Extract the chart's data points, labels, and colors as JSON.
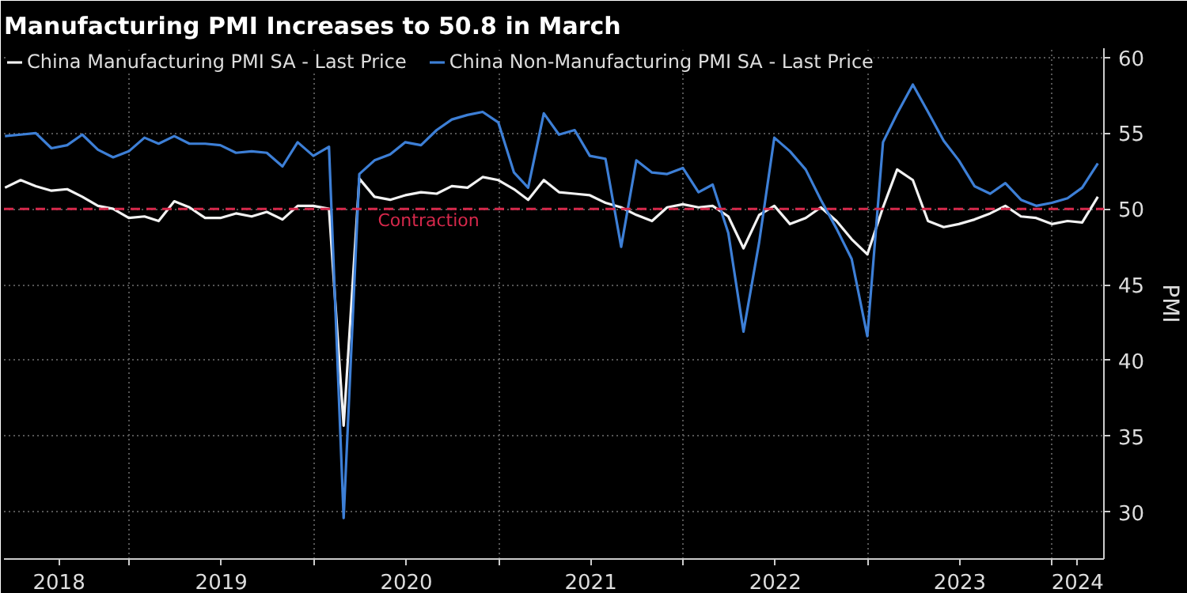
{
  "chart_data": {
    "type": "line",
    "title": "Manufacturing PMI Increases to 50.8 in March",
    "ylabel": "PMI",
    "x": [
      "2018-04-30",
      "2018-05-31",
      "2018-06-30",
      "2018-07-31",
      "2018-08-31",
      "2018-09-30",
      "2018-10-31",
      "2018-11-30",
      "2018-12-31",
      "2019-01-31",
      "2019-02-28",
      "2019-03-31",
      "2019-04-30",
      "2019-05-31",
      "2019-06-30",
      "2019-07-31",
      "2019-08-31",
      "2019-09-30",
      "2019-10-31",
      "2019-11-30",
      "2019-12-31",
      "2020-01-31",
      "2020-02-29",
      "2020-03-31",
      "2020-04-30",
      "2020-05-31",
      "2020-06-30",
      "2020-07-31",
      "2020-08-31",
      "2020-09-30",
      "2020-10-31",
      "2020-11-30",
      "2020-12-31",
      "2021-01-31",
      "2021-02-28",
      "2021-03-31",
      "2021-04-30",
      "2021-05-31",
      "2021-06-30",
      "2021-07-31",
      "2021-08-31",
      "2021-09-30",
      "2021-10-31",
      "2021-11-30",
      "2021-12-31",
      "2022-01-31",
      "2022-02-28",
      "2022-03-31",
      "2022-04-30",
      "2022-05-31",
      "2022-06-30",
      "2022-07-31",
      "2022-08-31",
      "2022-09-30",
      "2022-10-31",
      "2022-11-30",
      "2022-12-31",
      "2023-01-31",
      "2023-02-28",
      "2023-03-31",
      "2023-04-30",
      "2023-05-31",
      "2023-06-30",
      "2023-07-31",
      "2023-08-31",
      "2023-09-30",
      "2023-10-31",
      "2023-11-30",
      "2023-12-31",
      "2024-01-31",
      "2024-02-29",
      "2024-03-31"
    ],
    "series": [
      {
        "name": "China Manufacturing PMI SA - Last Price",
        "color": "#f2f2f2",
        "values": [
          51.4,
          51.9,
          51.5,
          51.2,
          51.3,
          50.8,
          50.2,
          50.0,
          49.4,
          49.5,
          49.2,
          50.5,
          50.1,
          49.4,
          49.4,
          49.7,
          49.5,
          49.8,
          49.3,
          50.2,
          50.2,
          50.0,
          35.7,
          52.0,
          50.8,
          50.6,
          50.9,
          51.1,
          51.0,
          51.5,
          51.4,
          52.1,
          51.9,
          51.3,
          50.6,
          51.9,
          51.1,
          51.0,
          50.9,
          50.4,
          50.1,
          49.6,
          49.2,
          50.1,
          50.3,
          50.1,
          50.2,
          49.5,
          47.4,
          49.6,
          50.2,
          49.0,
          49.4,
          50.1,
          49.2,
          48.0,
          47.0,
          50.1,
          52.6,
          51.9,
          49.2,
          48.8,
          49.0,
          49.3,
          49.7,
          50.2,
          49.5,
          49.4,
          49.0,
          49.2,
          49.1,
          50.8
        ]
      },
      {
        "name": "China Non-Manufacturing PMI SA - Last Price",
        "color": "#3d7fd6",
        "values": [
          54.8,
          54.9,
          55.0,
          54.0,
          54.2,
          54.9,
          53.9,
          53.4,
          53.8,
          54.7,
          54.3,
          54.8,
          54.3,
          54.3,
          54.2,
          53.7,
          53.8,
          53.7,
          52.8,
          54.4,
          53.5,
          54.1,
          29.6,
          52.3,
          53.2,
          53.6,
          54.4,
          54.2,
          55.2,
          55.9,
          56.2,
          56.4,
          55.7,
          52.4,
          51.4,
          56.3,
          54.9,
          55.2,
          53.5,
          53.3,
          47.5,
          53.2,
          52.4,
          52.3,
          52.7,
          51.1,
          51.6,
          48.4,
          41.9,
          47.8,
          54.7,
          53.8,
          52.6,
          50.6,
          48.7,
          46.7,
          41.6,
          54.4,
          56.3,
          58.2,
          56.4,
          54.5,
          53.2,
          51.5,
          51.0,
          51.7,
          50.6,
          50.2,
          50.4,
          50.7,
          51.4,
          53.0
        ]
      }
    ],
    "xlim": [
      "2018-04-28",
      "2024-04-12"
    ],
    "xticks": [
      {
        "value": "2018-08-15",
        "label": "2018"
      },
      {
        "value": "2019-01-01",
        "label": null
      },
      {
        "value": "2019-07-02",
        "label": "2019"
      },
      {
        "value": "2020-01-01",
        "label": null
      },
      {
        "value": "2020-07-02",
        "label": "2020"
      },
      {
        "value": "2021-01-01",
        "label": null
      },
      {
        "value": "2021-07-02",
        "label": "2021"
      },
      {
        "value": "2022-01-01",
        "label": null
      },
      {
        "value": "2022-07-02",
        "label": "2022"
      },
      {
        "value": "2023-01-01",
        "label": null
      },
      {
        "value": "2023-07-02",
        "label": "2023"
      },
      {
        "value": "2024-01-01",
        "label": null
      },
      {
        "value": "2024-02-20",
        "label": "2024"
      }
    ],
    "ylim": [
      26.9,
      60.6
    ],
    "yticks": [
      30,
      35,
      40,
      45,
      50,
      55,
      60
    ],
    "ref_lines": [
      {
        "axis": "y",
        "value": 50,
        "label": "Contraction",
        "color": "#d6284b",
        "line_style": "dashed"
      }
    ],
    "grid": true,
    "legend": "top left",
    "marker": "none",
    "line_style": "solid"
  }
}
